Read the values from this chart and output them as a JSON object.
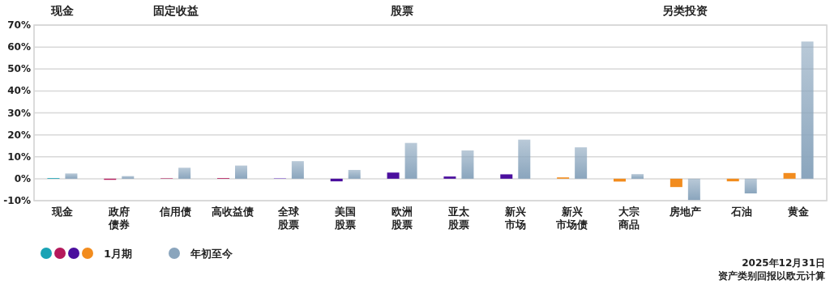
{
  "chart_data": {
    "type": "bar",
    "categories": [
      "现金",
      "政府债券",
      "信用债",
      "高收益债",
      "全球股票",
      "美国股票",
      "欧洲股票",
      "亚太股票",
      "新兴市场",
      "新兴市场债",
      "大宗商品",
      "房地产",
      "石油",
      "黄金"
    ],
    "series": [
      {
        "name": "1月期",
        "colors": [
          "#1aa3b5",
          "#b5195b",
          "#b5195b",
          "#b5195b",
          "#7a4bd0",
          "#4b0f9e",
          "#4b0f9e",
          "#4b0f9e",
          "#4b0f9e",
          "#f28c1e",
          "#f28c1e",
          "#f28c1e",
          "#f28c1e",
          "#f28c1e"
        ],
        "values": [
          0.3,
          -0.5,
          0.2,
          0.3,
          0.2,
          -1.2,
          2.8,
          1.0,
          2.0,
          0.6,
          -1.3,
          -3.8,
          -1.2,
          2.6
        ]
      },
      {
        "name": "年初至今",
        "color": "#8aa5bd",
        "values": [
          2.4,
          1.2,
          5.0,
          6.0,
          8.0,
          4.0,
          16.3,
          12.9,
          17.8,
          14.3,
          2.1,
          -9.7,
          -6.7,
          62.5
        ]
      }
    ],
    "ylim": [
      -10,
      70
    ],
    "yticks": [
      {
        "value": -10,
        "label": "-10%"
      },
      {
        "value": 0,
        "label": "0%"
      },
      {
        "value": 10,
        "label": "10%"
      },
      {
        "value": 20,
        "label": "20%"
      },
      {
        "value": 30,
        "label": "30%"
      },
      {
        "value": 40,
        "label": "40%"
      },
      {
        "value": 50,
        "label": "50%"
      },
      {
        "value": 60,
        "label": "60%"
      },
      {
        "value": 70,
        "label": "70%"
      }
    ],
    "grid": "y",
    "legend": "bottom left",
    "annotations": [
      "现金",
      "固定收益",
      "股票",
      "另类投资",
      "2025年12月31日",
      "资产类别回报以欧元计算"
    ]
  }
}
